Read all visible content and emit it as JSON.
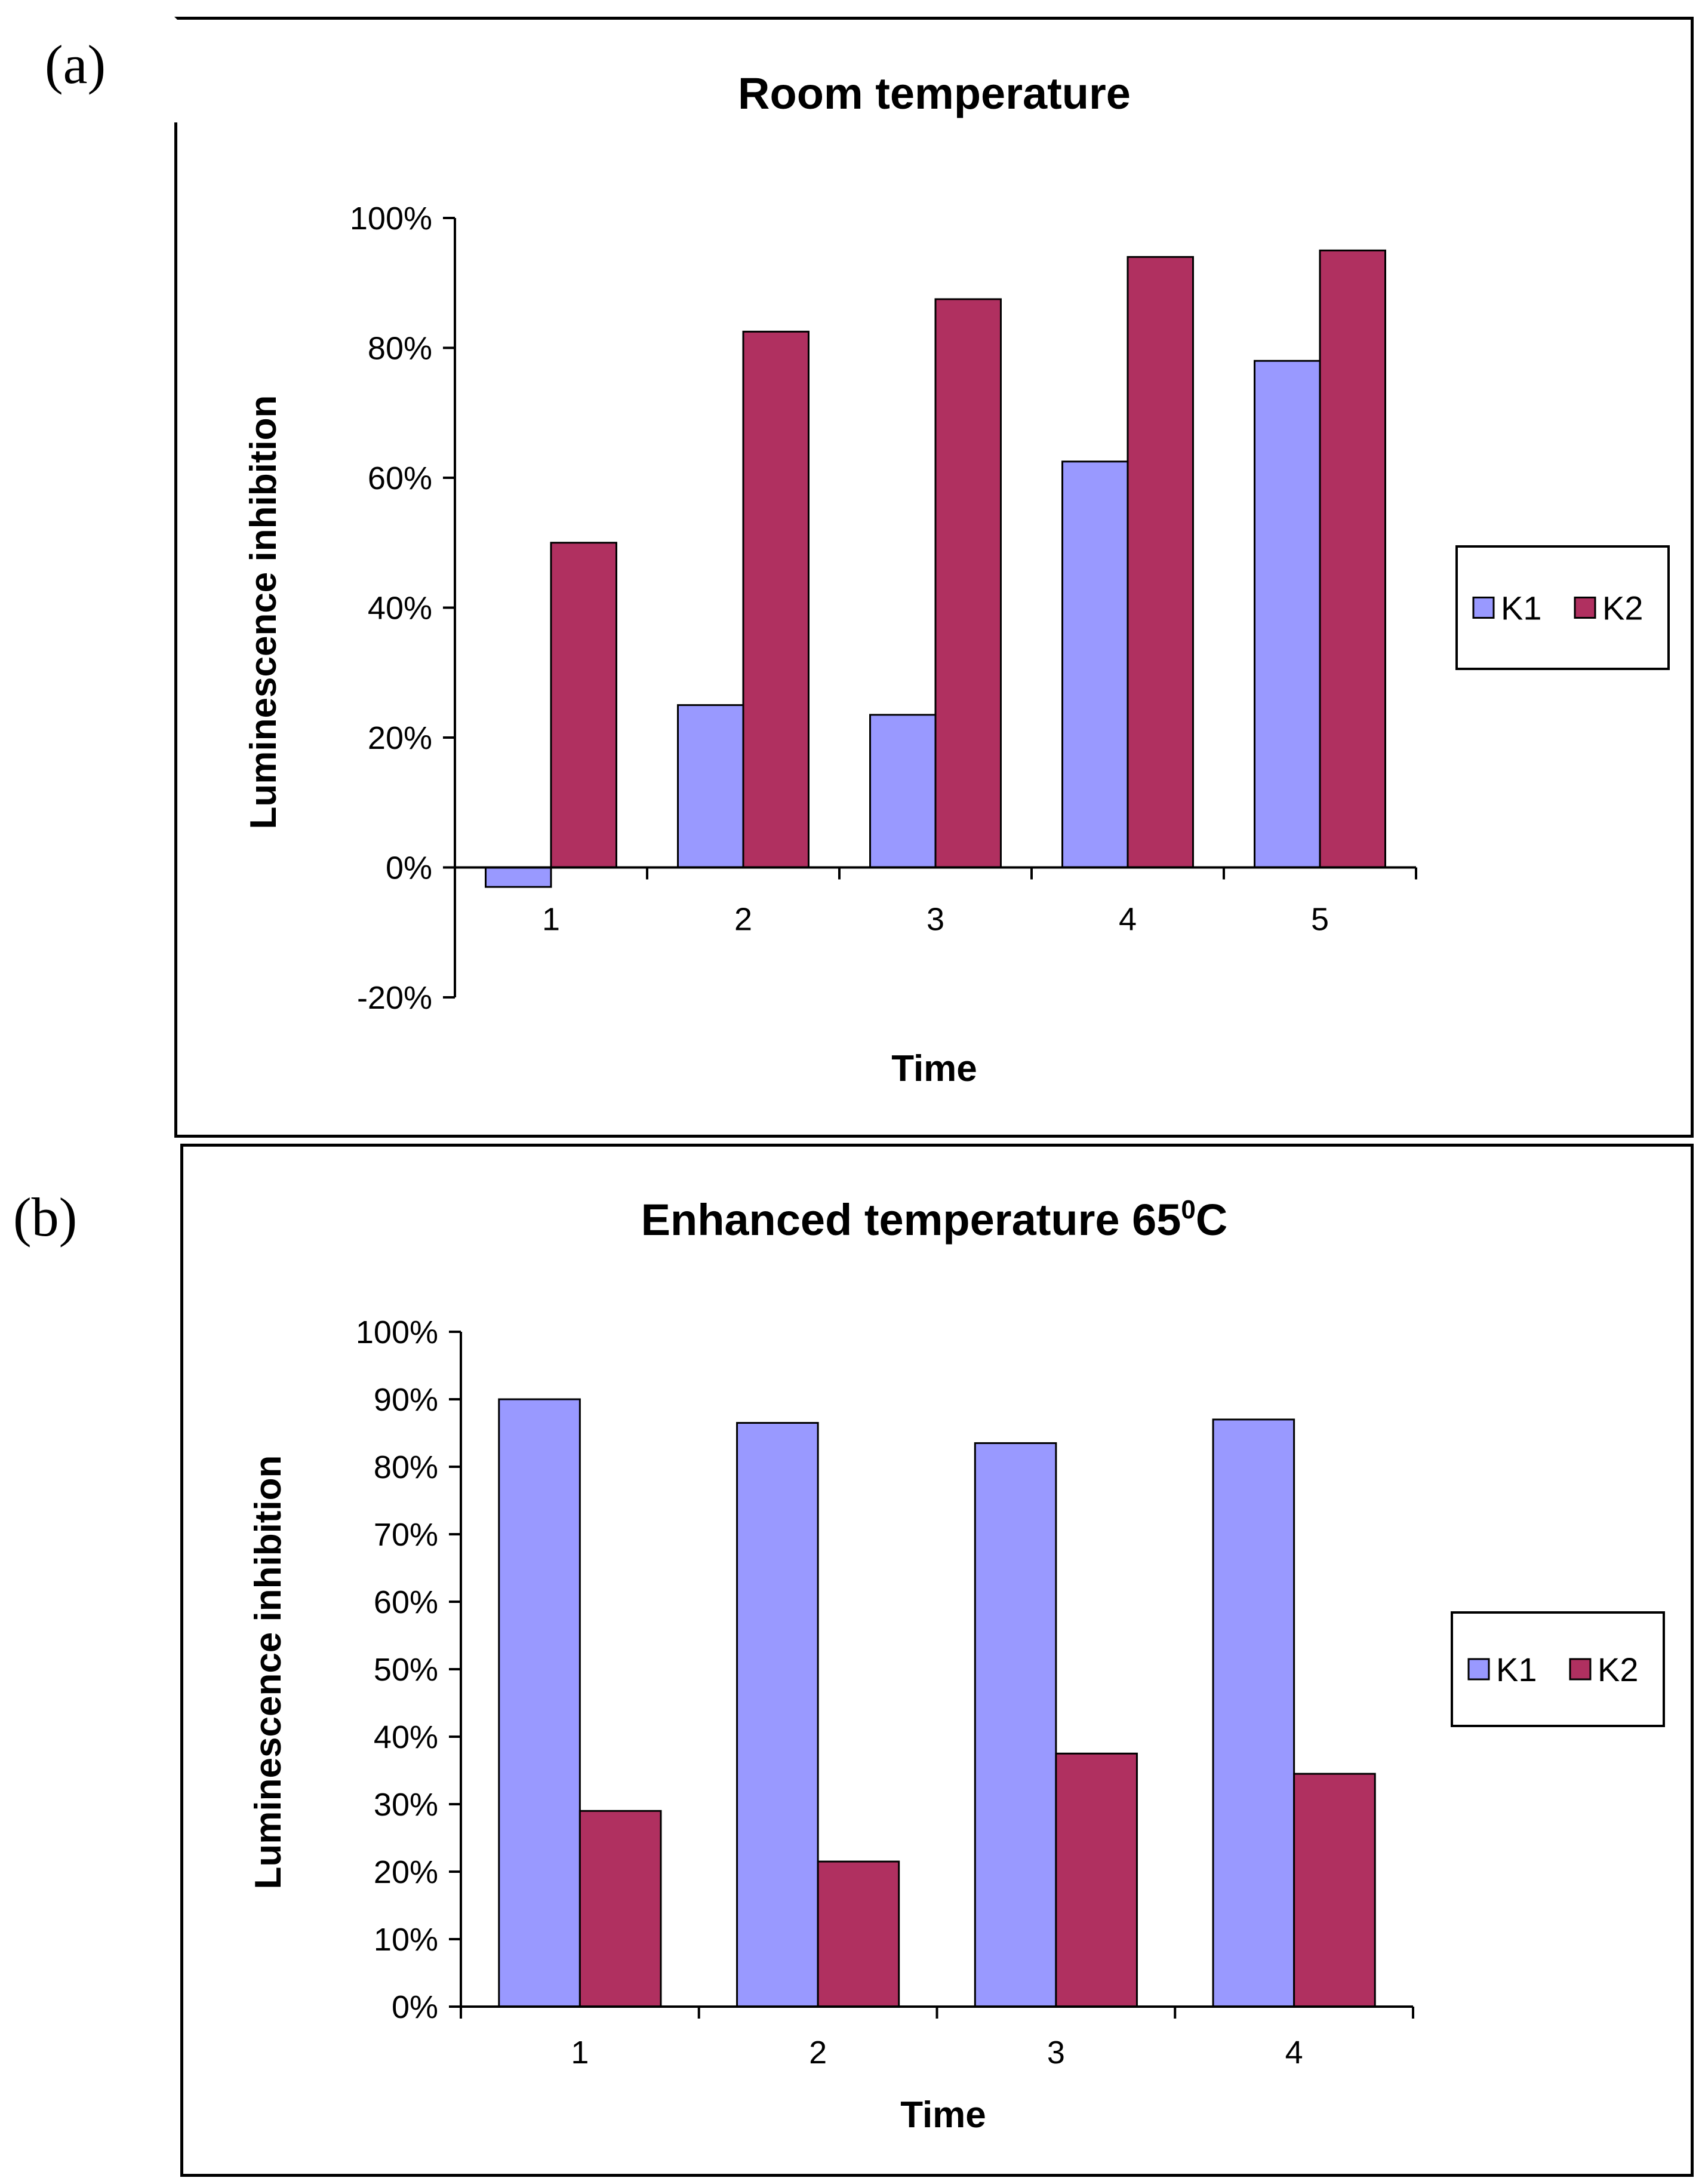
{
  "panels": [
    {
      "label": "(a)"
    },
    {
      "label": "(b)"
    }
  ],
  "chart_data": [
    {
      "type": "bar",
      "title": "Room temperature",
      "xlabel": "Time",
      "ylabel": "Luminescence inhibition",
      "categories": [
        "1",
        "2",
        "3",
        "4",
        "5"
      ],
      "ylim": [
        -20,
        100
      ],
      "yticks": [
        "-20%",
        "0%",
        "20%",
        "40%",
        "60%",
        "80%",
        "100%"
      ],
      "series": [
        {
          "name": "K1",
          "color": "#9999ff",
          "values": [
            -3,
            25,
            23.5,
            62.5,
            78
          ]
        },
        {
          "name": "K2",
          "color": "#b03060",
          "values": [
            50,
            82.5,
            87.5,
            94,
            95
          ]
        }
      ],
      "legend": "right",
      "grid": false
    },
    {
      "type": "bar",
      "title": "Enhanced temperature 65",
      "title_sup": "0",
      "title_suffix": "C",
      "xlabel": "Time",
      "ylabel": "Luminescence inhibition",
      "categories": [
        "1",
        "2",
        "3",
        "4"
      ],
      "ylim": [
        0,
        100
      ],
      "yticks": [
        "0%",
        "10%",
        "20%",
        "30%",
        "40%",
        "50%",
        "60%",
        "70%",
        "80%",
        "90%",
        "100%"
      ],
      "series": [
        {
          "name": "K1",
          "color": "#9999ff",
          "values": [
            90,
            86.5,
            83.5,
            87
          ]
        },
        {
          "name": "K2",
          "color": "#b03060",
          "values": [
            29,
            21.5,
            37.5,
            34.5
          ]
        }
      ],
      "legend": "right",
      "grid": false
    }
  ]
}
